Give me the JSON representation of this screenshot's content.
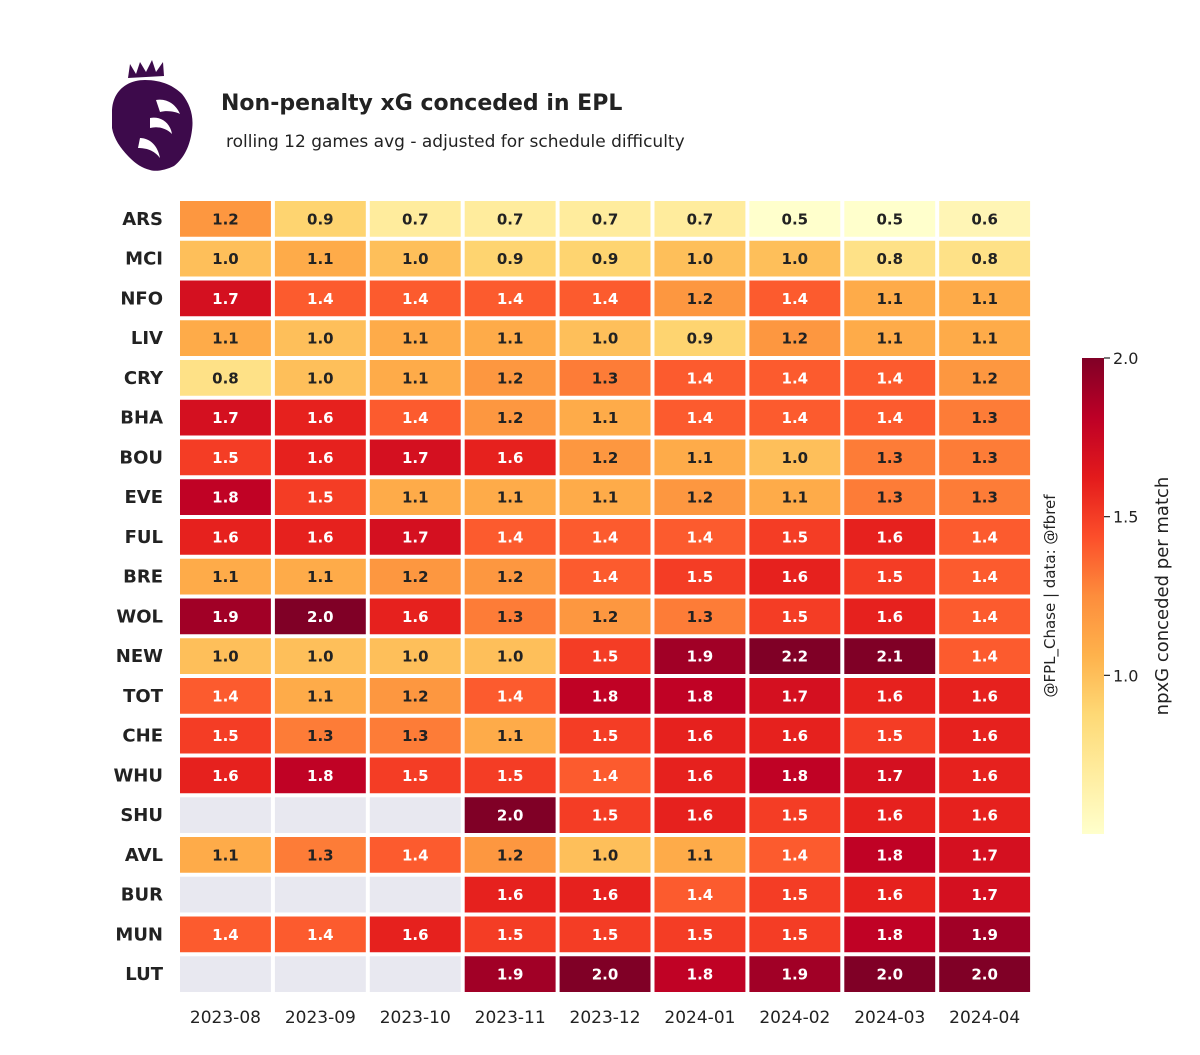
{
  "chart_data": {
    "type": "heatmap",
    "title": "Non-penalty xG conceded in EPL",
    "subtitle": "rolling 12 games avg - adjusted for schedule difficulty",
    "credit": "@FPL_Chase | data: @fbref",
    "colorbar": {
      "label": "npxG conceded per match",
      "range": [
        0.5,
        2.0
      ],
      "ticks": [
        "1.0",
        "1.5",
        "2.0"
      ],
      "colormap": "YlOrRd"
    },
    "x_categories": [
      "2023-08",
      "2023-09",
      "2023-10",
      "2023-11",
      "2023-12",
      "2024-01",
      "2024-02",
      "2024-03",
      "2024-04"
    ],
    "y_categories": [
      "ARS",
      "MCI",
      "NFO",
      "LIV",
      "CRY",
      "BHA",
      "BOU",
      "EVE",
      "FUL",
      "BRE",
      "WOL",
      "NEW",
      "TOT",
      "CHE",
      "WHU",
      "SHU",
      "AVL",
      "BUR",
      "MUN",
      "LUT"
    ],
    "values": [
      [
        1.2,
        0.9,
        0.7,
        0.7,
        0.7,
        0.7,
        0.5,
        0.5,
        0.6
      ],
      [
        1.0,
        1.1,
        1.0,
        0.9,
        0.9,
        1.0,
        1.0,
        0.8,
        0.8
      ],
      [
        1.7,
        1.4,
        1.4,
        1.4,
        1.4,
        1.2,
        1.4,
        1.1,
        1.1
      ],
      [
        1.1,
        1.0,
        1.1,
        1.1,
        1.0,
        0.9,
        1.2,
        1.1,
        1.1
      ],
      [
        0.8,
        1.0,
        1.1,
        1.2,
        1.3,
        1.4,
        1.4,
        1.4,
        1.2
      ],
      [
        1.7,
        1.6,
        1.4,
        1.2,
        1.1,
        1.4,
        1.4,
        1.4,
        1.3
      ],
      [
        1.5,
        1.6,
        1.7,
        1.6,
        1.2,
        1.1,
        1.0,
        1.3,
        1.3
      ],
      [
        1.8,
        1.5,
        1.1,
        1.1,
        1.1,
        1.2,
        1.1,
        1.3,
        1.3
      ],
      [
        1.6,
        1.6,
        1.7,
        1.4,
        1.4,
        1.4,
        1.5,
        1.6,
        1.4
      ],
      [
        1.1,
        1.1,
        1.2,
        1.2,
        1.4,
        1.5,
        1.6,
        1.5,
        1.4
      ],
      [
        1.9,
        2.0,
        1.6,
        1.3,
        1.2,
        1.3,
        1.5,
        1.6,
        1.4
      ],
      [
        1.0,
        1.0,
        1.0,
        1.0,
        1.5,
        1.9,
        2.2,
        2.1,
        1.4
      ],
      [
        1.4,
        1.1,
        1.2,
        1.4,
        1.8,
        1.8,
        1.7,
        1.6,
        1.6
      ],
      [
        1.5,
        1.3,
        1.3,
        1.1,
        1.5,
        1.6,
        1.6,
        1.5,
        1.6
      ],
      [
        1.6,
        1.8,
        1.5,
        1.5,
        1.4,
        1.6,
        1.8,
        1.7,
        1.6
      ],
      [
        null,
        null,
        null,
        2.0,
        1.5,
        1.6,
        1.5,
        1.6,
        1.6
      ],
      [
        1.1,
        1.3,
        1.4,
        1.2,
        1.0,
        1.1,
        1.4,
        1.8,
        1.7
      ],
      [
        null,
        null,
        null,
        1.6,
        1.6,
        1.4,
        1.5,
        1.6,
        1.7
      ],
      [
        1.4,
        1.4,
        1.6,
        1.5,
        1.5,
        1.5,
        1.5,
        1.8,
        1.9
      ],
      [
        null,
        null,
        null,
        1.9,
        2.0,
        1.8,
        1.9,
        2.0,
        2.0
      ]
    ],
    "missing_color": "#e8e8f0"
  }
}
